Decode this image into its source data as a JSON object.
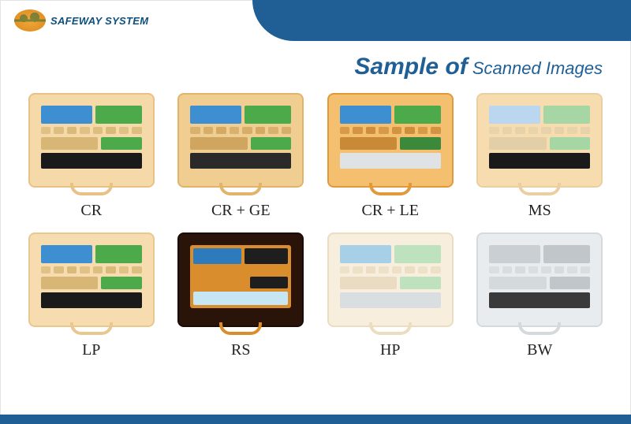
{
  "brand": "SAFEWAY SYSTEM",
  "title_main": "Sample of",
  "title_sub": " Scanned Images",
  "colors": {
    "header_blue": "#1f5f95",
    "brand_text": "#0d4f7d"
  },
  "samples": [
    {
      "label": "CR",
      "case_bg": "#f6d9a8",
      "case_border": "#e9c185",
      "handle": "#e9c185",
      "blocks": {
        "r1": [
          "#3e8fd1",
          "#4caa4a"
        ],
        "r2_strip": "#d7b676",
        "r3": [
          "#d7b676",
          "#4caa4a"
        ],
        "r4": "#1a1a1a"
      }
    },
    {
      "label": "CR + GE",
      "case_bg": "#f0cd90",
      "case_border": "#e2b46a",
      "handle": "#e2b46a",
      "blocks": {
        "r1": [
          "#3e8fd1",
          "#4caa4a"
        ],
        "r2_strip": "#cfa55f",
        "r3": [
          "#cfa55f",
          "#4caa4a"
        ],
        "r4": "#2a2a2a"
      }
    },
    {
      "label": "CR + LE",
      "case_bg": "#f4bf6f",
      "case_border": "#e09a3c",
      "handle": "#e09a3c",
      "blocks": {
        "r1": [
          "#3e8fd1",
          "#4caa4a"
        ],
        "r2_strip": "#c98a38",
        "r3": [
          "#c98a38",
          "#3c893c"
        ],
        "r4": "#dfe3e6"
      }
    },
    {
      "label": "MS",
      "case_bg": "#f7dcb0",
      "case_border": "#ead0a0",
      "handle": "#ead0a0",
      "blocks": {
        "r1": [
          "#bad7ef",
          "#a6d6a4"
        ],
        "r2_strip": "#e3cfa7",
        "r3": [
          "#e3cfa7",
          "#a6d6a4"
        ],
        "r4": "#1a1a1a"
      }
    },
    {
      "label": "LP",
      "case_bg": "#f6dcae",
      "case_border": "#e9c890",
      "handle": "#e9c890",
      "blocks": {
        "r1": [
          "#3e8fd1",
          "#4caa4a"
        ],
        "r2_strip": "#d7b676",
        "r3": [
          "#d7b676",
          "#4caa4a"
        ],
        "r4": "#1a1a1a"
      }
    },
    {
      "label": "RS",
      "case_bg": "#2a140a",
      "case_border": "#1a0c05",
      "handle": "#d98d2c",
      "blocks": {
        "r1": [
          "#2d7bbd",
          "#1e1e1e"
        ],
        "r2_strip": "#d98d2c",
        "r3": [
          "#d98d2c",
          "#1e1e1e"
        ],
        "r4": "#c7e6f4"
      },
      "inner_bg": "#d98d2c"
    },
    {
      "label": "HP",
      "case_bg": "#f8eedd",
      "case_border": "#ecdcc0",
      "handle": "#ecdcc0",
      "blocks": {
        "r1": [
          "#a7cfe7",
          "#bfe2be"
        ],
        "r2_strip": "#e9dcc2",
        "r3": [
          "#e9dcc2",
          "#bfe2be"
        ],
        "r4": "#d9dee1"
      }
    },
    {
      "label": "BW",
      "case_bg": "#e9ecee",
      "case_border": "#d4d9dc",
      "handle": "#d4d9dc",
      "blocks": {
        "r1": [
          "#c9cfd2",
          "#c0c6c9"
        ],
        "r2_strip": "#d4d9dc",
        "r3": [
          "#d4d9dc",
          "#c0c6c9"
        ],
        "r4": "#3a3a3a"
      }
    }
  ]
}
